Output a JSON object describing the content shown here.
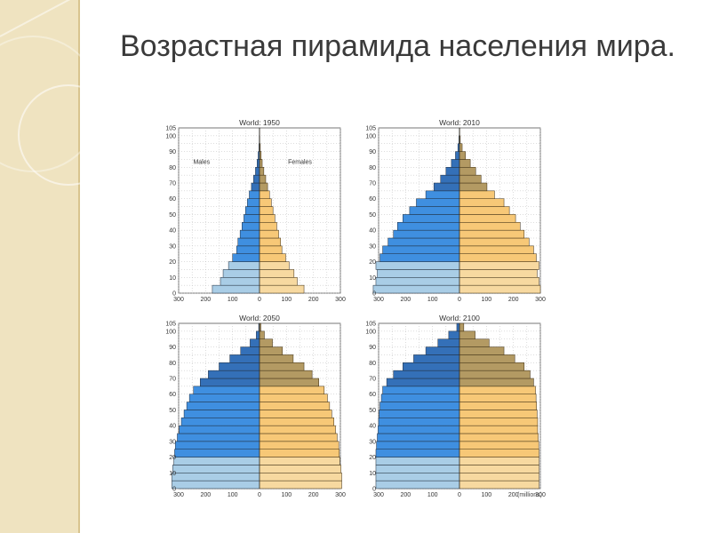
{
  "slide": {
    "title": "Возрастная пирамида населения мира."
  },
  "chart_data": [
    {
      "type": "bar",
      "orientation": "population-pyramid",
      "title": "World: 1950",
      "age_groups": [
        "0",
        "5",
        "10",
        "15",
        "20",
        "25",
        "30",
        "35",
        "40",
        "45",
        "50",
        "55",
        "60",
        "65",
        "70",
        "75",
        "80",
        "85",
        "90",
        "95",
        "100"
      ],
      "series": [
        {
          "name": "Males",
          "values": [
            175,
            145,
            135,
            115,
            100,
            85,
            80,
            72,
            65,
            58,
            52,
            45,
            38,
            30,
            22,
            15,
            9,
            5,
            2,
            1,
            0.5
          ]
        },
        {
          "name": "Females",
          "values": [
            165,
            140,
            128,
            110,
            97,
            83,
            78,
            71,
            64,
            57,
            50,
            44,
            37,
            30,
            23,
            16,
            10,
            6,
            3,
            1,
            0.5
          ]
        }
      ],
      "xticks": [
        300,
        200,
        100,
        0,
        100,
        200,
        300
      ],
      "yticks": [
        0,
        10,
        20,
        30,
        40,
        50,
        60,
        70,
        80,
        90,
        100,
        105
      ],
      "xlim": [
        -300,
        300
      ],
      "ylim": [
        0,
        105
      ],
      "annotations": [
        "Males",
        "Females"
      ],
      "colors": {
        "young": "#a9cde6",
        "male": "#3f8fe0",
        "male_old": "#3470b8",
        "female": "#f7c877",
        "female_old": "#b39a63"
      }
    },
    {
      "type": "bar",
      "orientation": "population-pyramid",
      "title": "World: 2010",
      "age_groups": [
        "0",
        "5",
        "10",
        "15",
        "20",
        "25",
        "30",
        "35",
        "40",
        "45",
        "50",
        "55",
        "60",
        "65",
        "70",
        "75",
        "80",
        "85",
        "90",
        "95",
        "100"
      ],
      "series": [
        {
          "name": "Males",
          "values": [
            320,
            310,
            305,
            310,
            295,
            285,
            265,
            245,
            230,
            210,
            185,
            160,
            125,
            95,
            70,
            50,
            30,
            15,
            6,
            2,
            0.5
          ]
        },
        {
          "name": "Females",
          "values": [
            300,
            295,
            288,
            295,
            285,
            275,
            258,
            240,
            225,
            208,
            185,
            165,
            130,
            102,
            80,
            60,
            40,
            22,
            10,
            3,
            1
          ]
        }
      ],
      "xticks": [
        300,
        200,
        100,
        0,
        100,
        200,
        300
      ],
      "yticks": [
        0,
        10,
        20,
        30,
        40,
        50,
        60,
        70,
        80,
        90,
        100,
        105
      ],
      "xlim": [
        -300,
        300
      ],
      "ylim": [
        0,
        105
      ],
      "colors": {
        "young": "#a9cde6",
        "male": "#3f8fe0",
        "male_old": "#3470b8",
        "female": "#f7c877",
        "female_old": "#b39a63"
      }
    },
    {
      "type": "bar",
      "orientation": "population-pyramid",
      "title": "World: 2050",
      "age_groups": [
        "0",
        "5",
        "10",
        "15",
        "20",
        "25",
        "30",
        "35",
        "40",
        "45",
        "50",
        "55",
        "60",
        "65",
        "70",
        "75",
        "80",
        "85",
        "90",
        "95",
        "100"
      ],
      "series": [
        {
          "name": "Males",
          "values": [
            325,
            325,
            322,
            318,
            315,
            312,
            305,
            298,
            290,
            280,
            270,
            260,
            245,
            220,
            190,
            150,
            110,
            70,
            35,
            12,
            3
          ]
        },
        {
          "name": "Females",
          "values": [
            305,
            305,
            302,
            298,
            296,
            294,
            288,
            282,
            276,
            268,
            260,
            252,
            240,
            220,
            195,
            165,
            125,
            85,
            48,
            18,
            5
          ]
        }
      ],
      "xticks": [
        300,
        200,
        100,
        0,
        100,
        200,
        300
      ],
      "yticks": [
        0,
        10,
        20,
        30,
        40,
        50,
        60,
        70,
        80,
        90,
        100,
        105
      ],
      "xlim": [
        -300,
        300
      ],
      "ylim": [
        0,
        105
      ],
      "colors": {
        "young": "#a9cde6",
        "male": "#3f8fe0",
        "male_old": "#3470b8",
        "female": "#f7c877",
        "female_old": "#b39a63"
      }
    },
    {
      "type": "bar",
      "orientation": "population-pyramid",
      "title": "World: 2100",
      "age_groups": [
        "0",
        "5",
        "10",
        "15",
        "20",
        "25",
        "30",
        "35",
        "40",
        "45",
        "50",
        "55",
        "60",
        "65",
        "70",
        "75",
        "80",
        "85",
        "90",
        "95",
        "100"
      ],
      "series": [
        {
          "name": "Males",
          "values": [
            310,
            310,
            310,
            310,
            310,
            308,
            305,
            302,
            300,
            298,
            295,
            290,
            285,
            270,
            245,
            210,
            170,
            125,
            80,
            40,
            10
          ]
        },
        {
          "name": "Females",
          "values": [
            295,
            295,
            295,
            295,
            295,
            294,
            292,
            290,
            290,
            288,
            286,
            284,
            282,
            275,
            262,
            240,
            205,
            165,
            110,
            58,
            16
          ]
        }
      ],
      "xticks": [
        300,
        200,
        100,
        0,
        100,
        200,
        300
      ],
      "yticks": [
        0,
        10,
        20,
        30,
        40,
        50,
        60,
        70,
        80,
        90,
        100,
        105
      ],
      "xlim": [
        -300,
        300
      ],
      "ylim": [
        0,
        105
      ],
      "footnote": "(millions)",
      "colors": {
        "young": "#a9cde6",
        "male": "#3f8fe0",
        "male_old": "#3470b8",
        "female": "#f7c877",
        "female_old": "#b39a63"
      }
    }
  ]
}
